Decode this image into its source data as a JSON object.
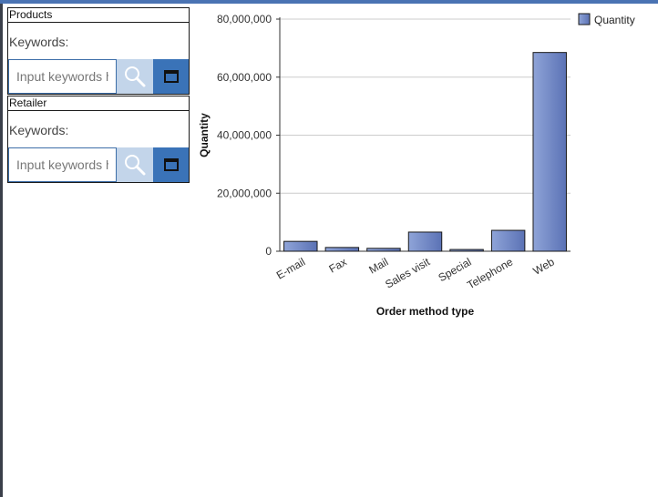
{
  "filters": [
    {
      "title": "Products",
      "keywords_label": "Keywords:",
      "search_placeholder": "Input keywords here",
      "search_icon": "search-icon",
      "window_icon": "window-icon"
    },
    {
      "title": "Retailer",
      "keywords_label": "Keywords:",
      "search_placeholder": "Input keywords here",
      "search_icon": "search-icon",
      "window_icon": "window-icon"
    }
  ],
  "colors": {
    "accent": "#3a73b8",
    "search_button": "#c3d5ea",
    "bar_light": "#8fa4d8",
    "bar_dark": "#5b72b5",
    "gridline": "#cccccc"
  },
  "chart_data": {
    "type": "bar",
    "categories": [
      "E-mail",
      "Fax",
      "Mail",
      "Sales visit",
      "Special",
      "Telephone",
      "Web"
    ],
    "series": [
      {
        "name": "Quantity",
        "values": [
          3400000,
          1300000,
          1000000,
          6600000,
          600000,
          7200000,
          68500000
        ]
      }
    ],
    "xlabel": "Order method type",
    "ylabel": "Quantity",
    "ylim": [
      0,
      80000000
    ],
    "yticks": [
      0,
      20000000,
      40000000,
      60000000,
      80000000
    ],
    "ytick_labels": [
      "0",
      "20,000,000",
      "40,000,000",
      "60,000,000",
      "80,000,000"
    ],
    "grid": true,
    "legend": "top-right"
  }
}
